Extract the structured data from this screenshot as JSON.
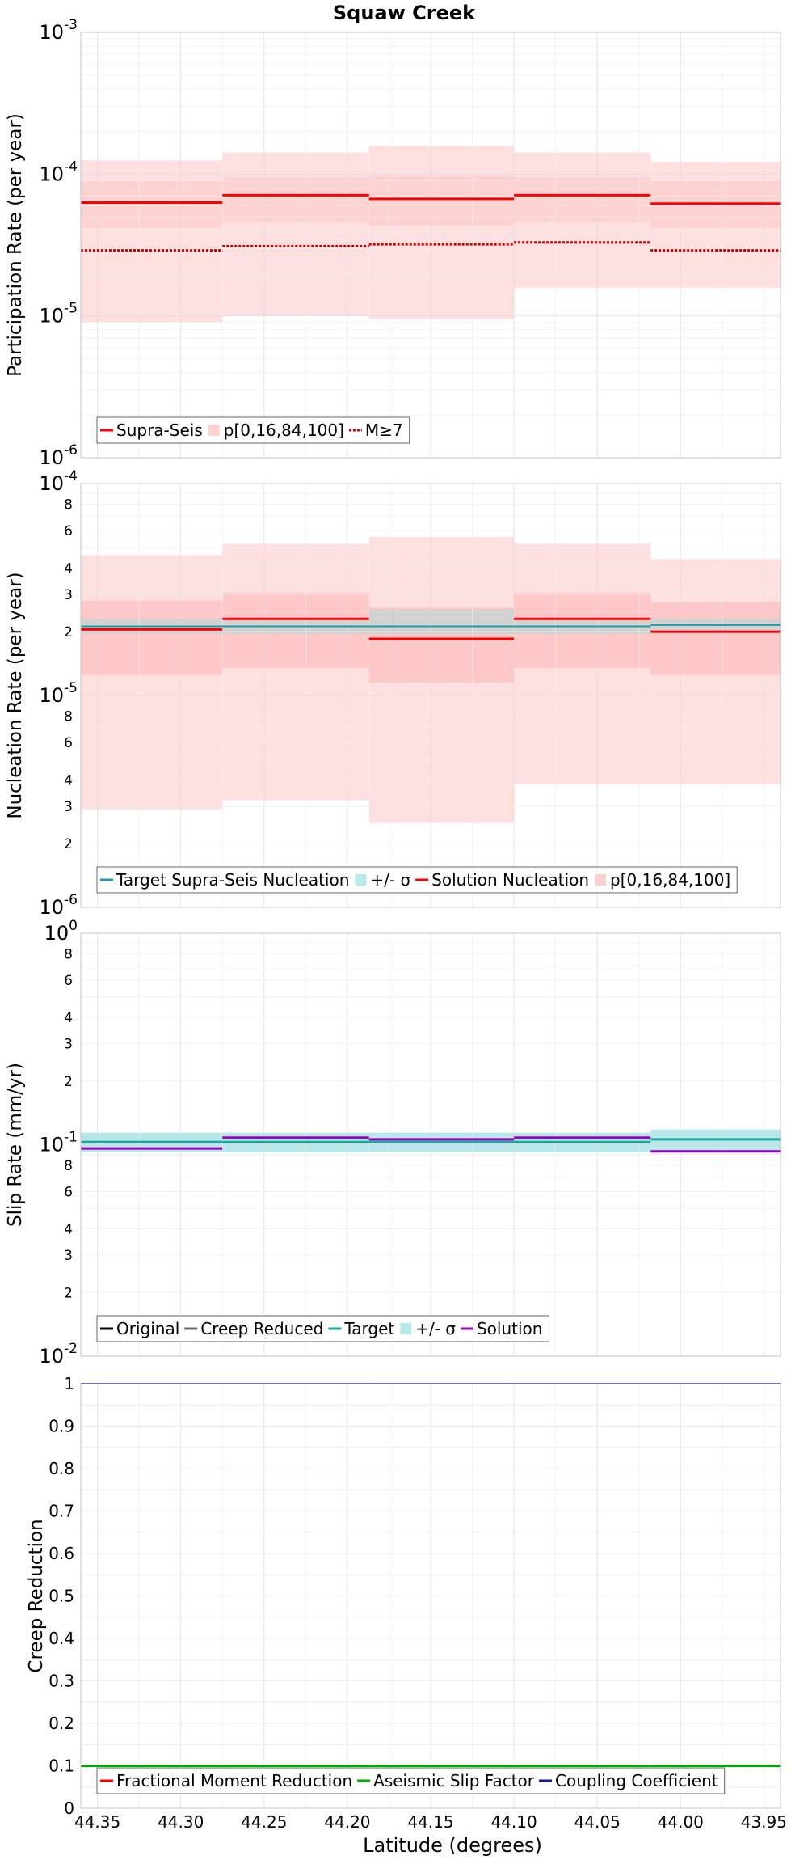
{
  "chart_data": {
    "title": "Squaw Creek",
    "xlabel": "Latitude (degrees)",
    "xlim": [
      44.36,
      43.94
    ],
    "x_ticks": [
      44.35,
      44.3,
      44.25,
      44.2,
      44.15,
      44.1,
      44.05,
      44.0,
      43.95
    ],
    "x_tick_labels": [
      "44.35",
      "44.30",
      "44.25",
      "44.20",
      "44.15",
      "44.10",
      "44.05",
      "44.00",
      "43.95"
    ],
    "sections": [
      {
        "start": 44.36,
        "end": 44.275
      },
      {
        "start": 44.275,
        "end": 44.187
      },
      {
        "start": 44.187,
        "end": 44.1
      },
      {
        "start": 44.1,
        "end": 44.018
      },
      {
        "start": 44.018,
        "end": 43.94
      }
    ],
    "panels": [
      {
        "key": "participation",
        "type": "line",
        "ylabel": "Participation Rate (per year)",
        "scale": "log",
        "ylim": [
          1e-06,
          0.001
        ],
        "major_ticks": [
          {
            "value": 1e-06,
            "base": "10",
            "exp": "-6"
          },
          {
            "value": 1e-05,
            "base": "10",
            "exp": "-5"
          },
          {
            "value": 0.0001,
            "base": "10",
            "exp": "-4"
          },
          {
            "value": 0.001,
            "base": "10",
            "exp": "-3"
          }
        ],
        "minor_labels": [],
        "bands": [
          {
            "color": "#ffe0e0",
            "values": [
              [
                9e-06,
                0.000125
              ],
              [
                1e-05,
                0.000142
              ],
              [
                9.5e-06,
                0.000158
              ],
              [
                1.58e-05,
                0.000142
              ],
              [
                1.58e-05,
                0.000122
              ]
            ]
          },
          {
            "color": "#ffd2d2",
            "values": [
              [
                4.2e-05,
                8.9e-05
              ],
              [
                4.6e-05,
                9.5e-05
              ],
              [
                4.3e-05,
                9.7e-05
              ],
              [
                4.6e-05,
                9.5e-05
              ],
              [
                4.2e-05,
                8.9e-05
              ]
            ]
          }
        ],
        "series": [
          {
            "name": "Supra-Seis",
            "color": "#ff0000",
            "dash": "",
            "values": [
              6.3e-05,
              7.1e-05,
              6.7e-05,
              7.1e-05,
              6.2e-05
            ]
          },
          {
            "name": "M≥7",
            "color": "#cc0000",
            "dash": "3 2",
            "values": [
              2.9e-05,
              3.1e-05,
              3.2e-05,
              3.3e-05,
              2.9e-05
            ]
          }
        ],
        "legend": [
          {
            "kind": "line",
            "color": "#ff0000",
            "dash": "",
            "label": "Supra-Seis"
          },
          {
            "kind": "band",
            "color": "#ffd2d2",
            "label": "p[0,16,84,100]"
          },
          {
            "kind": "line",
            "color": "#cc0000",
            "dash": "3 2",
            "label": "M≥7"
          }
        ]
      },
      {
        "key": "nucleation",
        "type": "line",
        "ylabel": "Nucleation Rate (per year)",
        "scale": "log",
        "ylim": [
          1e-06,
          0.0001
        ],
        "major_ticks": [
          {
            "value": 1e-06,
            "base": "10",
            "exp": "-6"
          },
          {
            "value": 1e-05,
            "base": "10",
            "exp": "-5"
          },
          {
            "value": 0.0001,
            "base": "10",
            "exp": "-4"
          }
        ],
        "minor_labels": [
          {
            "value": 2e-06,
            "label": "2"
          },
          {
            "value": 3e-06,
            "label": "3"
          },
          {
            "value": 4e-06,
            "label": "4"
          },
          {
            "value": 6e-06,
            "label": "6"
          },
          {
            "value": 8e-06,
            "label": "8"
          },
          {
            "value": 2e-05,
            "label": "2"
          },
          {
            "value": 3e-05,
            "label": "3"
          },
          {
            "value": 4e-05,
            "label": "4"
          },
          {
            "value": 6e-05,
            "label": "6"
          },
          {
            "value": 8e-05,
            "label": "8"
          }
        ],
        "bands": [
          {
            "color": "#ffe0e0",
            "values": [
              [
                2.9e-06,
                4.6e-05
              ],
              [
                3.2e-06,
                5.2e-05
              ],
              [
                2.5e-06,
                5.6e-05
              ],
              [
                3.8e-06,
                5.2e-05
              ],
              [
                3.8e-06,
                4.4e-05
              ]
            ]
          },
          {
            "color": "#ffc8c8",
            "values": [
              [
                1.25e-05,
                2.8e-05
              ],
              [
                1.35e-05,
                3.05e-05
              ],
              [
                1.15e-05,
                2.6e-05
              ],
              [
                1.35e-05,
                3.05e-05
              ],
              [
                1.25e-05,
                2.75e-05
              ]
            ]
          },
          {
            "color": "#d2d2d2",
            "values": [
              [
                1.95e-05,
                2.3e-05
              ],
              [
                1.95e-05,
                2.3e-05
              ],
              [
                1.95e-05,
                2.55e-05
              ],
              [
                1.95e-05,
                2.3e-05
              ],
              [
                1.95e-05,
                2.3e-05
              ]
            ]
          }
        ],
        "series": [
          {
            "name": "Target Supra-Seis Nucleation",
            "color": "#1f9ca8",
            "dash": "",
            "width": 2,
            "values": [
              2.12e-05,
              2.12e-05,
              2.12e-05,
              2.12e-05,
              2.15e-05
            ]
          },
          {
            "name": "Solution Nucleation",
            "color": "#ff0000",
            "dash": "",
            "width": 3,
            "values": [
              2.05e-05,
              2.3e-05,
              1.85e-05,
              2.3e-05,
              2e-05
            ]
          }
        ],
        "legend": [
          {
            "kind": "line",
            "color": "#1f9ca8",
            "dash": "",
            "label": "Target Supra-Seis Nucleation"
          },
          {
            "kind": "band",
            "color": "#b8e8ea",
            "label": "+/- σ"
          },
          {
            "kind": "line",
            "color": "#ff0000",
            "dash": "",
            "label": "Solution Nucleation"
          },
          {
            "kind": "band",
            "color": "#ffd2d2",
            "label": "p[0,16,84,100]"
          }
        ]
      },
      {
        "key": "slip",
        "type": "line",
        "ylabel": "Slip Rate (mm/yr)",
        "scale": "log",
        "ylim": [
          0.01,
          1
        ],
        "major_ticks": [
          {
            "value": 0.01,
            "base": "10",
            "exp": "-2"
          },
          {
            "value": 0.1,
            "base": "10",
            "exp": "-1"
          },
          {
            "value": 1,
            "base": "10",
            "exp": "0"
          }
        ],
        "minor_labels": [
          {
            "value": 0.02,
            "label": "2"
          },
          {
            "value": 0.03,
            "label": "3"
          },
          {
            "value": 0.04,
            "label": "4"
          },
          {
            "value": 0.06,
            "label": "6"
          },
          {
            "value": 0.08,
            "label": "8"
          },
          {
            "value": 0.2,
            "label": "2"
          },
          {
            "value": 0.3,
            "label": "3"
          },
          {
            "value": 0.4,
            "label": "4"
          },
          {
            "value": 0.6,
            "label": "6"
          },
          {
            "value": 0.8,
            "label": "8"
          }
        ],
        "bands": [
          {
            "color": "#b8e8ea",
            "values": [
              [
                0.092,
                0.114
              ],
              [
                0.092,
                0.114
              ],
              [
                0.092,
                0.114
              ],
              [
                0.092,
                0.114
              ],
              [
                0.094,
                0.118
              ]
            ]
          }
        ],
        "series": [
          {
            "name": "Target",
            "color": "#1aa89c",
            "dash": "",
            "width": 3,
            "values": [
              0.103,
              0.103,
              0.103,
              0.103,
              0.106
            ]
          },
          {
            "name": "Solution",
            "color": "#9900bb",
            "dash": "",
            "width": 3,
            "values": [
              0.096,
              0.108,
              0.106,
              0.108,
              0.093
            ]
          }
        ],
        "legend": [
          {
            "kind": "line",
            "color": "#000000",
            "dash": "",
            "label": "Original"
          },
          {
            "kind": "line",
            "color": "#666666",
            "dash": "",
            "label": "Creep Reduced"
          },
          {
            "kind": "line",
            "color": "#1aa89c",
            "dash": "",
            "label": "Target"
          },
          {
            "kind": "band",
            "color": "#b8e8ea",
            "label": "+/- σ"
          },
          {
            "kind": "line",
            "color": "#9900bb",
            "dash": "",
            "label": "Solution"
          }
        ]
      },
      {
        "key": "creep",
        "type": "line",
        "ylabel": "Creep Reduction",
        "scale": "linear",
        "ylim": [
          0,
          1
        ],
        "major_ticks": [
          {
            "value": 0,
            "label": "0"
          },
          {
            "value": 0.1,
            "label": "0.1"
          },
          {
            "value": 0.2,
            "label": "0.2"
          },
          {
            "value": 0.3,
            "label": "0.3"
          },
          {
            "value": 0.4,
            "label": "0.4"
          },
          {
            "value": 0.5,
            "label": "0.5"
          },
          {
            "value": 0.6,
            "label": "0.6"
          },
          {
            "value": 0.7,
            "label": "0.7"
          },
          {
            "value": 0.8,
            "label": "0.8"
          },
          {
            "value": 0.9,
            "label": "0.9"
          },
          {
            "value": 1,
            "label": "1"
          }
        ],
        "minor_labels": [],
        "bands": [],
        "series": [
          {
            "name": "Aseismic Slip Factor",
            "color": "#00aa00",
            "dash": "",
            "width": 3,
            "values": [
              0.1,
              0.1,
              0.1,
              0.1,
              0.1
            ]
          },
          {
            "name": "Coupling Coefficient",
            "color": "#1a1aa0",
            "dash": "",
            "width": 2,
            "values": [
              1.0,
              1.0,
              1.0,
              1.0,
              1.0
            ]
          }
        ],
        "legend": [
          {
            "kind": "line",
            "color": "#ff0000",
            "dash": "",
            "label": "Fractional Moment Reduction"
          },
          {
            "kind": "line",
            "color": "#00aa00",
            "dash": "",
            "label": "Aseismic Slip Factor"
          },
          {
            "kind": "line",
            "color": "#1a1aa0",
            "dash": "",
            "label": "Coupling Coefficient"
          }
        ]
      }
    ]
  }
}
